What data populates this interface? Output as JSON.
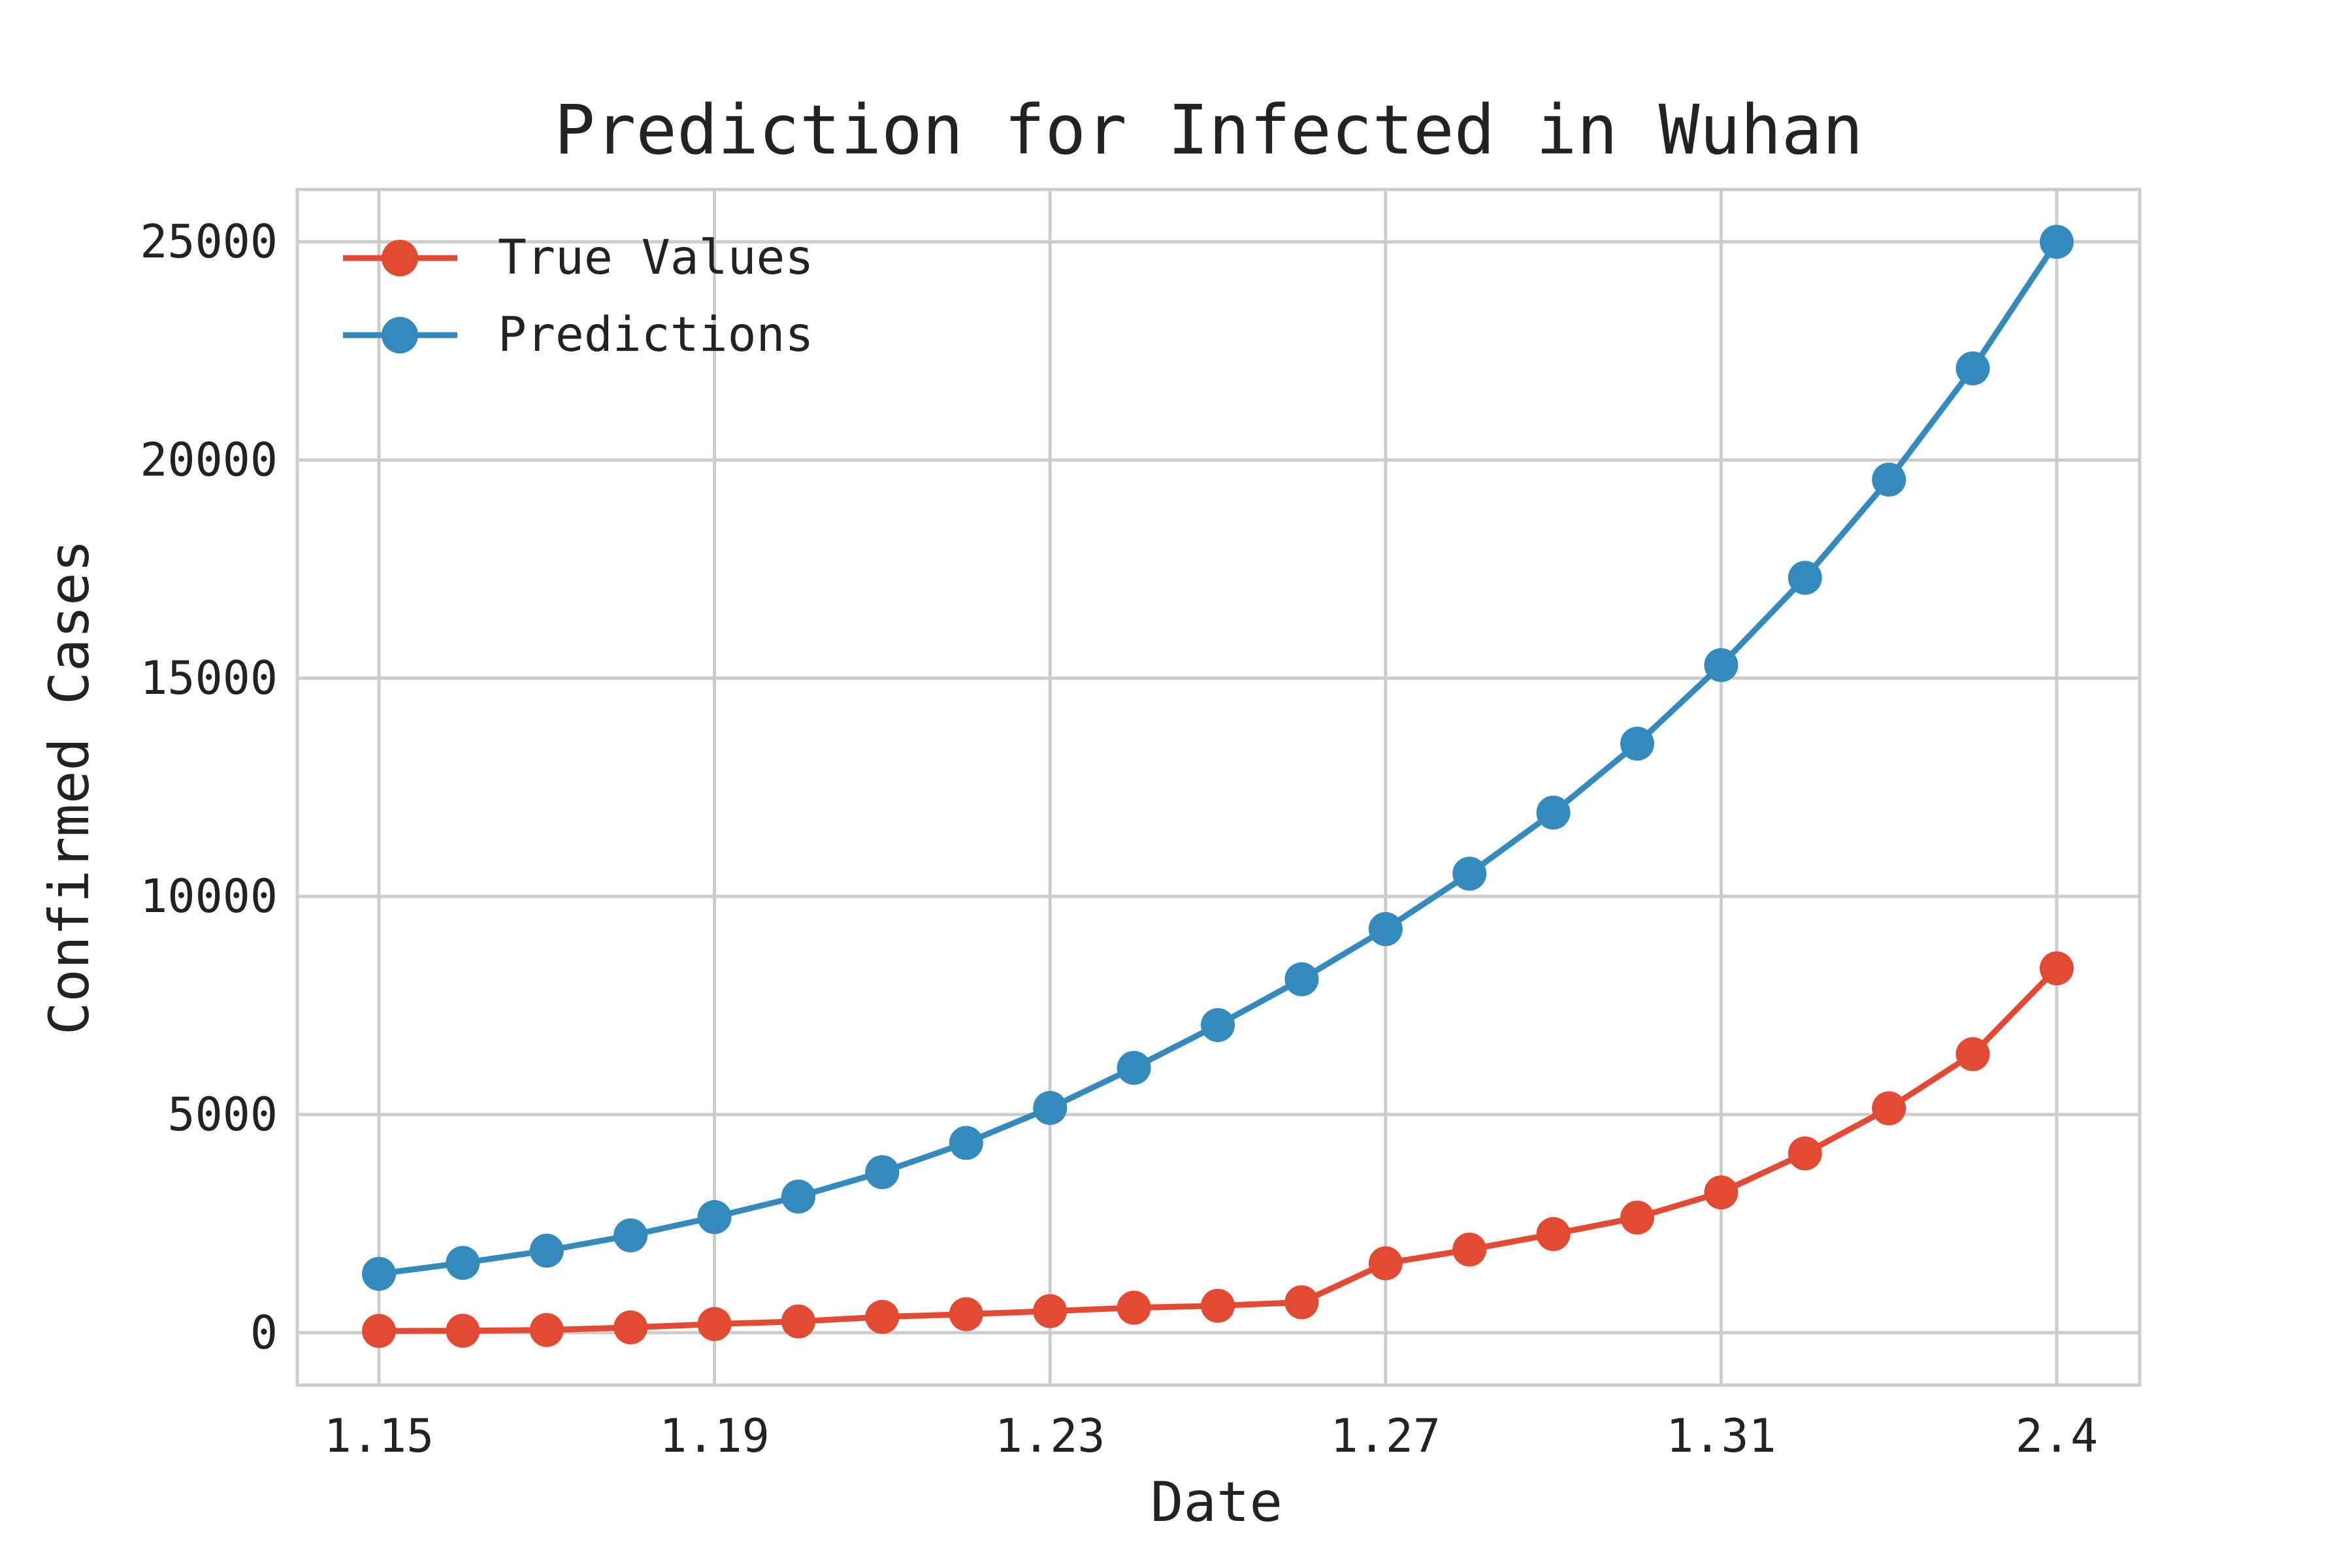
{
  "chart_data": {
    "type": "line",
    "title": "Prediction for Infected in Wuhan",
    "xlabel": "Date",
    "ylabel": "Confirmed Cases",
    "x": [
      "1.15",
      "1.16",
      "1.17",
      "1.18",
      "1.19",
      "1.20",
      "1.21",
      "1.22",
      "1.23",
      "1.24",
      "1.25",
      "1.26",
      "1.27",
      "1.28",
      "1.29",
      "1.30",
      "1.31",
      "2.1",
      "2.2",
      "2.3",
      "2.4"
    ],
    "x_tick_labels": [
      "1.15",
      "1.19",
      "1.23",
      "1.27",
      "1.31",
      "2.4"
    ],
    "yticks": [
      "0",
      "5000",
      "10000",
      "15000",
      "20000",
      "25000"
    ],
    "ylim": [
      -1200,
      26200
    ],
    "grid": true,
    "legend": "top-left",
    "series": [
      {
        "name": "True Values",
        "color": "#E24A33",
        "values": [
          41,
          45,
          62,
          121,
          198,
          258,
          363,
          425,
          495,
          572,
          618,
          698,
          1590,
          1905,
          2261,
          2639,
          3215,
          4109,
          5142,
          6384,
          8351
        ]
      },
      {
        "name": "Predictions",
        "color": "#348ABD",
        "values": [
          1350,
          1600,
          1880,
          2230,
          2650,
          3120,
          3680,
          4350,
          5150,
          6070,
          7050,
          8100,
          9250,
          10520,
          11920,
          13500,
          15300,
          17300,
          19550,
          22100,
          25000
        ]
      }
    ]
  }
}
